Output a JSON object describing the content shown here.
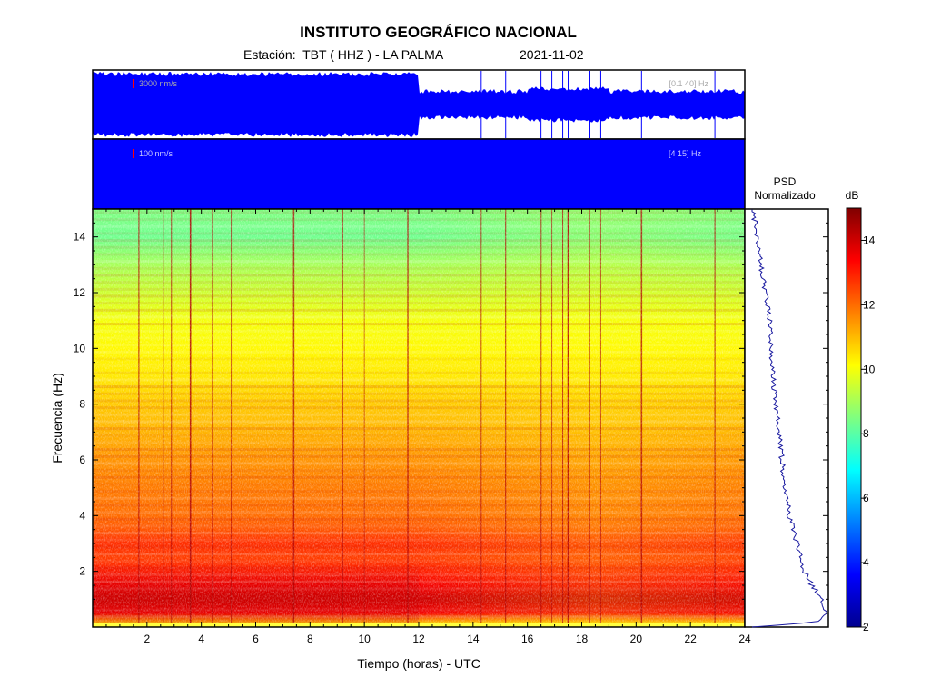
{
  "header": {
    "institution": "INSTITUTO GEOGRÁFICO NACIONAL",
    "station_label": "Estación:  TBT ( HHZ ) - LA PALMA",
    "date": "2021-11-02"
  },
  "traces": [
    {
      "scale_label": "3000 nm/s",
      "band_label": "[0.1 40] Hz"
    },
    {
      "scale_label": "100 nm/s",
      "band_label": "[4 15] Hz"
    }
  ],
  "psd_panel": {
    "title_line1": "PSD",
    "title_line2": "Normalizado"
  },
  "colorbar": {
    "unit": "dB",
    "range": [
      2,
      15
    ],
    "ticks": [
      2,
      4,
      6,
      8,
      10,
      12,
      14
    ]
  },
  "colors": {
    "trace": "#0000ff",
    "frame": "#000000",
    "psd_line": "#1a1aa0",
    "scale_marker": "#ff0000"
  },
  "chart_data": {
    "type": "heatmap",
    "xlabel": "Tiempo (horas) - UTC",
    "ylabel": "Frecuencia  (Hz)",
    "xlim": [
      0,
      24
    ],
    "ylim": [
      0,
      15
    ],
    "xticks": [
      2,
      4,
      6,
      8,
      10,
      12,
      14,
      16,
      18,
      20,
      22,
      24
    ],
    "yticks": [
      2,
      4,
      6,
      8,
      10,
      12,
      14
    ],
    "color_scale": "jet",
    "colorbar_unit": "dB",
    "colorbar_range": [
      2,
      15
    ],
    "mean_db_by_frequency": {
      "frequency_hz": [
        0.1,
        0.5,
        1,
        1.5,
        2,
        2.5,
        3,
        3.5,
        4,
        5,
        6,
        7,
        8,
        9,
        10,
        11,
        12,
        13,
        14,
        15
      ],
      "db": [
        10.5,
        13.5,
        14.0,
        13.5,
        13.0,
        12.6,
        12.8,
        12.3,
        12.0,
        11.8,
        11.5,
        11.1,
        10.8,
        10.4,
        10.2,
        10.0,
        9.5,
        9.0,
        8.3,
        8.5
      ]
    },
    "high_energy_period_hours": [
      0,
      12
    ],
    "transient_events_hours": [
      1.7,
      2.6,
      2.9,
      3.6,
      4.4,
      5.1,
      7.4,
      9.2,
      10.0,
      11.6,
      14.3,
      15.2,
      16.5,
      16.9,
      17.3,
      17.5,
      18.3,
      18.7,
      20.2,
      22.9
    ],
    "psd_normalized": {
      "frequency_hz": [
        0,
        0.2,
        0.5,
        1,
        1.5,
        2,
        3,
        4,
        5,
        6,
        7,
        8,
        9,
        10,
        11,
        12,
        13,
        14,
        15
      ],
      "value": [
        0.02,
        0.9,
        1.0,
        0.95,
        0.8,
        0.7,
        0.6,
        0.5,
        0.45,
        0.4,
        0.36,
        0.32,
        0.28,
        0.26,
        0.24,
        0.18,
        0.12,
        0.05,
        0.02
      ]
    }
  }
}
